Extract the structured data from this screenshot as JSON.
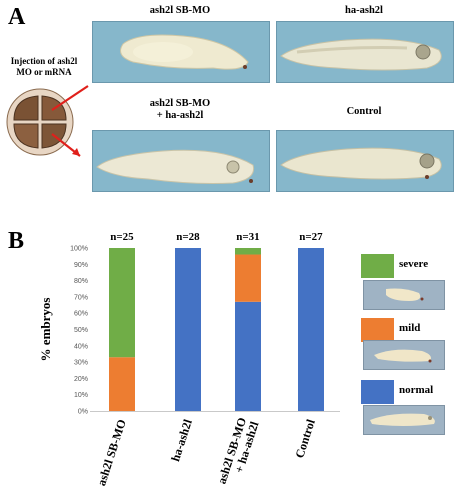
{
  "panel_a": {
    "letter": "A",
    "injection_label_line1": "Injection of ash2l",
    "injection_label_line2": "MO or mRNA",
    "photos": [
      {
        "caption": "ash2l SB-MO",
        "phenotype": "severe"
      },
      {
        "caption": "ha-ash2l",
        "phenotype": "normal"
      },
      {
        "caption_line1": "ash2l SB-MO",
        "caption_line2": "+ ha-ash2l",
        "phenotype": "normal"
      },
      {
        "caption": "Control",
        "phenotype": "normal"
      }
    ]
  },
  "panel_b": {
    "letter": "B",
    "legend": [
      {
        "label": "severe",
        "color": "#70ad47"
      },
      {
        "label": "mild",
        "color": "#ed7d31"
      },
      {
        "label": "normal",
        "color": "#4472c4"
      }
    ]
  },
  "chart_data": {
    "type": "bar",
    "stacked": true,
    "categories": [
      "ash2l SB-MO",
      "ha-ash2l",
      "ash2l SB-MO\n+ ha-ash2l",
      "Control"
    ],
    "n_labels": [
      "n=25",
      "n=28",
      "n=31",
      "n=27"
    ],
    "series": [
      {
        "name": "normal",
        "color": "#4472c4",
        "values": [
          0,
          100,
          67,
          100
        ]
      },
      {
        "name": "mild",
        "color": "#ed7d31",
        "values": [
          33,
          0,
          29,
          0
        ]
      },
      {
        "name": "severe",
        "color": "#70ad47",
        "values": [
          67,
          0,
          4,
          0
        ]
      }
    ],
    "ylabel": "% embryos",
    "ylim": [
      0,
      100
    ],
    "yticks": [
      "0%",
      "10%",
      "20%",
      "30%",
      "40%",
      "50%",
      "60%",
      "70%",
      "80%",
      "90%",
      "100%"
    ]
  }
}
